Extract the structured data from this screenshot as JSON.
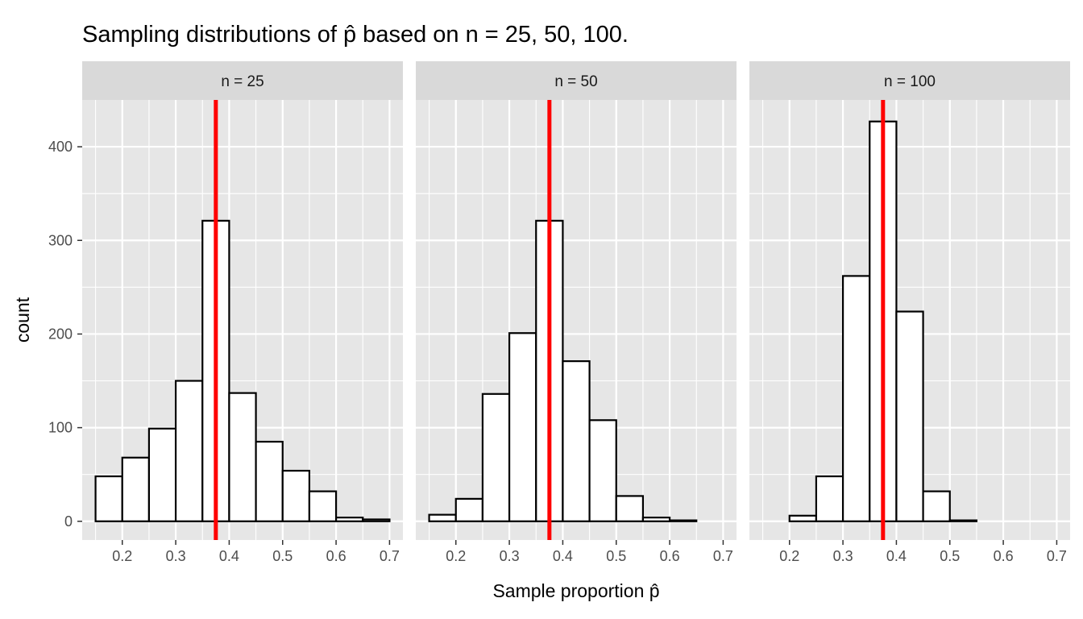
{
  "chart_data": {
    "type": "bar",
    "title": "Sampling distributions of p̂ based on n = 25, 50, 100.",
    "xlabel": "Sample proportion p̂",
    "ylabel": "count",
    "xlim": [
      0.125,
      0.725
    ],
    "ylim": [
      -20,
      450
    ],
    "x_ticks": [
      0.2,
      0.3,
      0.4,
      0.5,
      0.6,
      0.7
    ],
    "x_tick_labels": [
      "0.2",
      "0.3",
      "0.4",
      "0.5",
      "0.6",
      "0.7"
    ],
    "y_ticks": [
      0,
      100,
      200,
      300,
      400
    ],
    "y_tick_labels": [
      "0",
      "100",
      "200",
      "300",
      "400"
    ],
    "bin_edges": [
      0.15,
      0.2,
      0.25,
      0.3,
      0.35,
      0.4,
      0.45,
      0.5,
      0.55,
      0.6,
      0.65,
      0.7
    ],
    "reference_line": {
      "x": 0.375,
      "color": "#ff0000"
    },
    "grid": true,
    "colors": {
      "panel_bg": "#e6e6e6",
      "strip_bg": "#d9d9d9",
      "grid": "#ffffff",
      "bar_fill": "#ffffff",
      "bar_stroke": "#000000",
      "tick_text": "#4d4d4d"
    },
    "facets": [
      {
        "label": "n = 25",
        "counts": [
          48,
          68,
          99,
          150,
          321,
          137,
          85,
          54,
          32,
          4,
          2
        ]
      },
      {
        "label": "n = 50",
        "counts": [
          7,
          24,
          136,
          201,
          321,
          171,
          108,
          27,
          4,
          1,
          0
        ]
      },
      {
        "label": "n = 100",
        "counts": [
          0,
          6,
          48,
          262,
          427,
          224,
          32,
          1,
          0,
          0,
          0
        ]
      }
    ]
  }
}
